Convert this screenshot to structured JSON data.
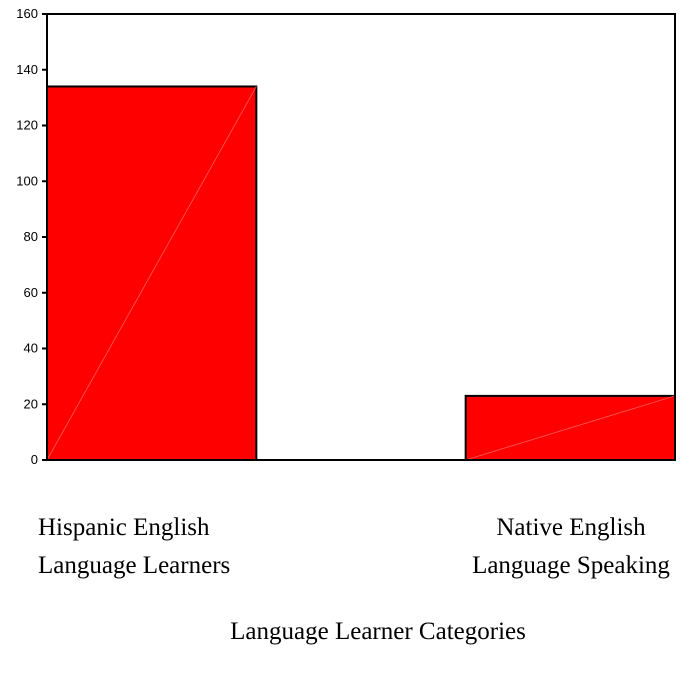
{
  "chart_data": {
    "type": "bar",
    "categories": [
      [
        "Hispanic English",
        "Language Learners"
      ],
      [
        "Native English",
        "Language Speaking"
      ]
    ],
    "values": [
      134,
      23
    ],
    "xlabel": "Language Learner Categories",
    "ylabel": "",
    "ylim": [
      0,
      160
    ],
    "yticks": [
      0,
      20,
      40,
      60,
      80,
      100,
      120,
      140,
      160
    ],
    "grid": false,
    "bar_color": "#ff0000"
  }
}
